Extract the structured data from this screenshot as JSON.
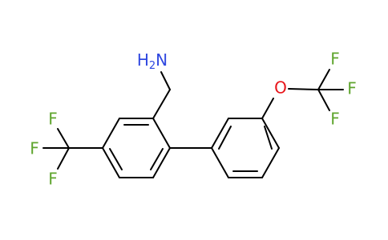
{
  "atoms": {
    "amine": {
      "element": "N",
      "prefix": "H",
      "subscript": "2",
      "symbol": "N"
    },
    "left_cf3": [
      "F",
      "F",
      "F"
    ],
    "ether": "O",
    "right_cf3": [
      "F",
      "F",
      "F"
    ]
  }
}
